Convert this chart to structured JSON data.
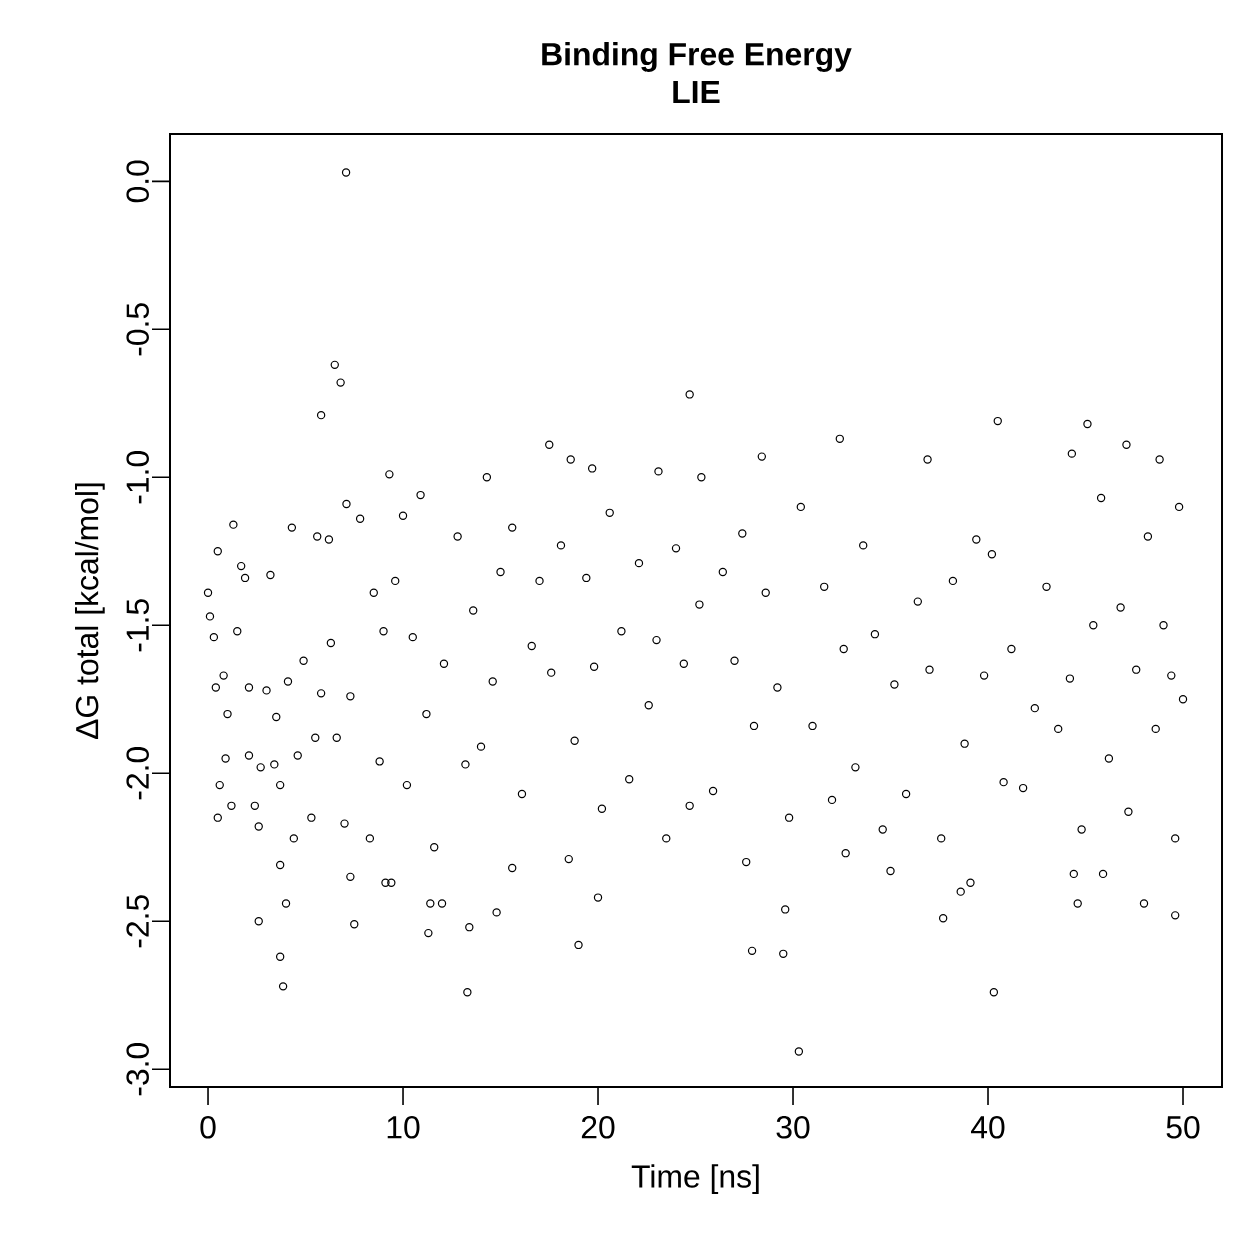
{
  "chart_data": {
    "type": "scatter",
    "title": "Binding Free Energy",
    "subtitle": "LIE",
    "xlabel": "Time [ns]",
    "ylabel": "ΔG total [kcal/mol]",
    "xlim": [
      -1.95,
      52
    ],
    "ylim": [
      -3.06,
      0.16
    ],
    "xticks": [
      0,
      10,
      20,
      30,
      40,
      50
    ],
    "yticks": [
      {
        "value": 0,
        "label": "0.0"
      },
      -0.5,
      {
        "value": -1,
        "label": "-1.0"
      },
      -1.5,
      {
        "value": -2,
        "label": "-2.0"
      },
      -2.5,
      {
        "value": -3,
        "label": "-3.0"
      }
    ],
    "marker": "circle",
    "grid": false,
    "series": [
      {
        "color": "#000000",
        "x": [
          7.08,
          6.5,
          6.8,
          5.8,
          24.7,
          40.5,
          45.1,
          32.4,
          47.1,
          17.5,
          30.3,
          40.3,
          13.3,
          3.85,
          3.7,
          19.0,
          27.9,
          29.5,
          2.6,
          7.5,
          13.4,
          29.6,
          37.7,
          49.6,
          48.0,
          44.6,
          11.3,
          11.4,
          12.0,
          20.0,
          14.8,
          9.1,
          9.4,
          7.3,
          3.7,
          4.0,
          38.6,
          39.1,
          44.4,
          45.9,
          15.6,
          35.0,
          32.7,
          18.5,
          27.6,
          49.6,
          9.3,
          14.3,
          23.1,
          25.3,
          28.4,
          36.9,
          44.3,
          48.8,
          18.6,
          19.7,
          0,
          0.1,
          0.3,
          0.4,
          0.5,
          0.6,
          0.5,
          0.8,
          0.9,
          1.0,
          1.2,
          1.3,
          1.5,
          1.7,
          1.9,
          2.1,
          2.1,
          2.4,
          2.6,
          2.7,
          3.0,
          3.2,
          3.4,
          3.5,
          3.7,
          4.1,
          4.3,
          4.4,
          4.6,
          4.9,
          5.3,
          5.5,
          5.6,
          5.8,
          6.2,
          6.3,
          6.6,
          7.0,
          7.1,
          7.3,
          7.8,
          8.3,
          8.5,
          8.8,
          9.0,
          9.6,
          10.0,
          10.2,
          10.5,
          10.9,
          11.2,
          11.6,
          12.1,
          12.8,
          13.2,
          13.6,
          14.0,
          14.6,
          15.0,
          15.6,
          16.1,
          16.6,
          17.0,
          17.6,
          18.1,
          18.8,
          19.4,
          19.8,
          20.2,
          20.6,
          21.2,
          21.6,
          22.1,
          22.6,
          23.0,
          23.5,
          24.0,
          24.4,
          24.7,
          25.2,
          25.9,
          26.4,
          27.0,
          27.4,
          28.0,
          28.6,
          29.2,
          29.8,
          30.4,
          31.0,
          31.6,
          32.0,
          32.6,
          33.2,
          33.6,
          34.2,
          34.6,
          35.2,
          35.8,
          36.4,
          37.0,
          37.6,
          38.2,
          38.8,
          39.4,
          39.8,
          40.2,
          40.8,
          41.2,
          41.8,
          42.4,
          43.0,
          43.6,
          44.2,
          44.8,
          45.4,
          45.8,
          46.2,
          46.8,
          47.2,
          47.6,
          48.2,
          48.6,
          49.0,
          49.4,
          49.8,
          50.0
        ],
        "values": [
          0.03,
          -0.62,
          -0.68,
          -0.79,
          -0.72,
          -0.81,
          -0.82,
          -0.87,
          -0.89,
          -0.89,
          -2.94,
          -2.74,
          -2.74,
          -2.72,
          -2.62,
          -2.58,
          -2.6,
          -2.61,
          -2.5,
          -2.51,
          -2.52,
          -2.46,
          -2.49,
          -2.48,
          -2.44,
          -2.44,
          -2.54,
          -2.44,
          -2.44,
          -2.42,
          -2.47,
          -2.37,
          -2.37,
          -2.35,
          -2.31,
          -2.44,
          -2.4,
          -2.37,
          -2.34,
          -2.34,
          -2.32,
          -2.33,
          -2.27,
          -2.29,
          -2.3,
          -2.22,
          -0.99,
          -1.0,
          -0.98,
          -1.0,
          -0.93,
          -0.94,
          -0.92,
          -0.94,
          -0.94,
          -0.97,
          -1.39,
          -1.47,
          -1.54,
          -1.71,
          -1.25,
          -2.04,
          -2.15,
          -1.67,
          -1.95,
          -1.8,
          -2.11,
          -1.16,
          -1.52,
          -1.3,
          -1.34,
          -1.71,
          -1.94,
          -2.11,
          -2.18,
          -1.98,
          -1.72,
          -1.33,
          -1.97,
          -1.81,
          -2.04,
          -1.69,
          -1.17,
          -2.22,
          -1.94,
          -1.62,
          -2.15,
          -1.88,
          -1.2,
          -1.73,
          -1.21,
          -1.56,
          -1.88,
          -2.17,
          -1.09,
          -1.74,
          -1.14,
          -2.22,
          -1.39,
          -1.96,
          -1.52,
          -1.35,
          -1.13,
          -2.04,
          -1.54,
          -1.06,
          -1.8,
          -2.25,
          -1.63,
          -1.2,
          -1.97,
          -1.45,
          -1.91,
          -1.69,
          -1.32,
          -1.17,
          -2.07,
          -1.57,
          -1.35,
          -1.66,
          -1.23,
          -1.89,
          -1.34,
          -1.64,
          -2.12,
          -1.12,
          -1.52,
          -2.02,
          -1.29,
          -1.77,
          -1.55,
          -2.22,
          -1.24,
          -1.63,
          -2.11,
          -1.43,
          -2.06,
          -1.32,
          -1.62,
          -1.19,
          -1.84,
          -1.39,
          -1.71,
          -2.15,
          -1.1,
          -1.84,
          -1.37,
          -2.09,
          -1.58,
          -1.98,
          -1.23,
          -1.53,
          -2.19,
          -1.7,
          -2.07,
          -1.42,
          -1.65,
          -2.22,
          -1.35,
          -1.9,
          -1.21,
          -1.67,
          -1.26,
          -2.03,
          -1.58,
          -2.05,
          -1.78,
          -1.37,
          -1.85,
          -1.68,
          -2.19,
          -1.5,
          -1.07,
          -1.95,
          -1.44,
          -2.13,
          -1.65,
          -1.2,
          -1.85,
          -1.5,
          -1.67,
          -1.1,
          -1.75
        ]
      }
    ]
  }
}
